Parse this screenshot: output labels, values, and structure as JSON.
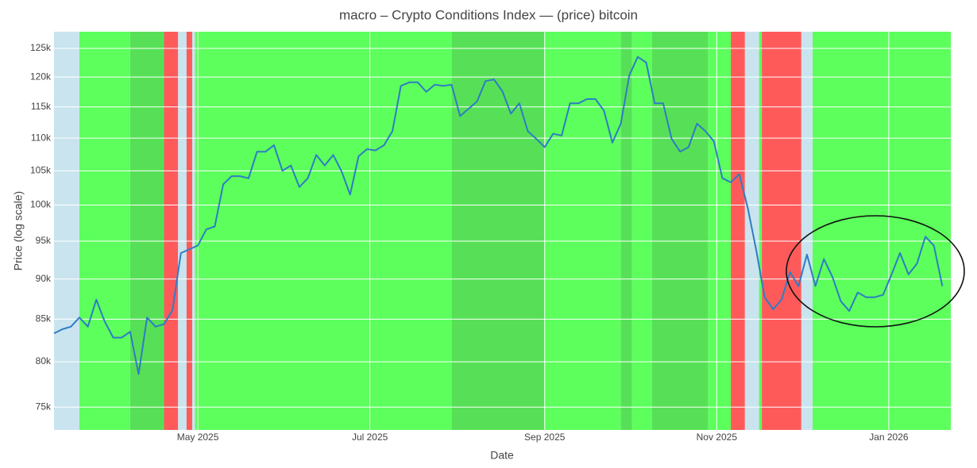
{
  "chart_data": {
    "type": "line",
    "title": "macro – Crypto Conditions Index — (price) bitcoin",
    "xlabel": "Date",
    "ylabel": "Price (log scale)",
    "log_y": true,
    "grid": true,
    "color": "#2f7cc4",
    "xlim": [
      "2025-03-11",
      "2026-01-23"
    ],
    "xticks": [
      {
        "value": "2025-05-01",
        "label": "May 2025"
      },
      {
        "value": "2025-07-01",
        "label": "Jul 2025"
      },
      {
        "value": "2025-09-01",
        "label": "Sep 2025"
      },
      {
        "value": "2025-11-01",
        "label": "Nov 2025"
      },
      {
        "value": "2026-01-01",
        "label": "Jan 2026"
      }
    ],
    "ylim": [
      72600,
      128000
    ],
    "yticks": [
      {
        "value": 75000,
        "label": "75k"
      },
      {
        "value": 80000,
        "label": "80k"
      },
      {
        "value": 85000,
        "label": "85k"
      },
      {
        "value": 90000,
        "label": "90k"
      },
      {
        "value": 95000,
        "label": "95k"
      },
      {
        "value": 100000,
        "label": "100k"
      },
      {
        "value": 105000,
        "label": "105k"
      },
      {
        "value": 110000,
        "label": "110k"
      },
      {
        "value": 115000,
        "label": "115k"
      },
      {
        "value": 120000,
        "label": "120k"
      },
      {
        "value": 125000,
        "label": "125k"
      }
    ],
    "bands": [
      {
        "start": "2025-03-11",
        "end": "2025-03-20",
        "color": "#c9e4ee"
      },
      {
        "start": "2025-03-20",
        "end": "2025-04-07",
        "color": "#5cff5c"
      },
      {
        "start": "2025-04-07",
        "end": "2025-04-19",
        "color": "#57e057"
      },
      {
        "start": "2025-04-19",
        "end": "2025-04-24",
        "color": "#ff5a5a"
      },
      {
        "start": "2025-04-24",
        "end": "2025-04-27",
        "color": "#c9e4ee"
      },
      {
        "start": "2025-04-27",
        "end": "2025-04-29",
        "color": "#ff5a5a"
      },
      {
        "start": "2025-04-29",
        "end": "2025-04-30",
        "color": "#c9e4ee"
      },
      {
        "start": "2025-04-30",
        "end": "2025-07-30",
        "color": "#5cff5c"
      },
      {
        "start": "2025-07-30",
        "end": "2025-09-01",
        "color": "#57e057"
      },
      {
        "start": "2025-09-01",
        "end": "2025-09-28",
        "color": "#5cff5c"
      },
      {
        "start": "2025-09-28",
        "end": "2025-10-02",
        "color": "#57e057"
      },
      {
        "start": "2025-10-02",
        "end": "2025-10-09",
        "color": "#5cff5c"
      },
      {
        "start": "2025-10-09",
        "end": "2025-10-29",
        "color": "#57e057"
      },
      {
        "start": "2025-10-29",
        "end": "2025-11-06",
        "color": "#5cff5c"
      },
      {
        "start": "2025-11-06",
        "end": "2025-11-11",
        "color": "#ff5a5a"
      },
      {
        "start": "2025-11-11",
        "end": "2025-11-16",
        "color": "#c9e4ee"
      },
      {
        "start": "2025-11-16",
        "end": "2025-11-17",
        "color": "#5cff5c"
      },
      {
        "start": "2025-11-17",
        "end": "2025-12-01",
        "color": "#ff5a5a"
      },
      {
        "start": "2025-12-01",
        "end": "2025-12-05",
        "color": "#c9e4ee"
      },
      {
        "start": "2025-12-05",
        "end": "2026-01-23",
        "color": "#5cff5c"
      }
    ],
    "x": [
      "2025-03-11",
      "2025-03-14",
      "2025-03-17",
      "2025-03-20",
      "2025-03-23",
      "2025-03-26",
      "2025-03-29",
      "2025-04-01",
      "2025-04-04",
      "2025-04-07",
      "2025-04-10",
      "2025-04-13",
      "2025-04-16",
      "2025-04-19",
      "2025-04-22",
      "2025-04-25",
      "2025-04-28",
      "2025-05-01",
      "2025-05-04",
      "2025-05-07",
      "2025-05-10",
      "2025-05-13",
      "2025-05-16",
      "2025-05-19",
      "2025-05-22",
      "2025-05-25",
      "2025-05-28",
      "2025-05-31",
      "2025-06-03",
      "2025-06-06",
      "2025-06-09",
      "2025-06-12",
      "2025-06-15",
      "2025-06-18",
      "2025-06-21",
      "2025-06-24",
      "2025-06-27",
      "2025-06-30",
      "2025-07-03",
      "2025-07-06",
      "2025-07-09",
      "2025-07-12",
      "2025-07-15",
      "2025-07-18",
      "2025-07-21",
      "2025-07-24",
      "2025-07-27",
      "2025-07-30",
      "2025-08-02",
      "2025-08-05",
      "2025-08-08",
      "2025-08-11",
      "2025-08-14",
      "2025-08-17",
      "2025-08-20",
      "2025-08-23",
      "2025-08-26",
      "2025-08-29",
      "2025-09-01",
      "2025-09-04",
      "2025-09-07",
      "2025-09-10",
      "2025-09-13",
      "2025-09-16",
      "2025-09-19",
      "2025-09-22",
      "2025-09-25",
      "2025-09-28",
      "2025-10-01",
      "2025-10-04",
      "2025-10-07",
      "2025-10-10",
      "2025-10-13",
      "2025-10-16",
      "2025-10-19",
      "2025-10-22",
      "2025-10-25",
      "2025-10-28",
      "2025-10-31",
      "2025-11-03",
      "2025-11-06",
      "2025-11-09",
      "2025-11-12",
      "2025-11-15",
      "2025-11-18",
      "2025-11-21",
      "2025-11-24",
      "2025-11-27",
      "2025-11-30",
      "2025-12-03",
      "2025-12-06",
      "2025-12-09",
      "2025-12-12",
      "2025-12-15",
      "2025-12-18",
      "2025-12-21",
      "2025-12-24",
      "2025-12-27",
      "2025-12-30",
      "2026-01-02",
      "2026-01-05",
      "2026-01-08",
      "2026-01-11",
      "2026-01-14",
      "2026-01-17",
      "2026-01-20"
    ],
    "values": [
      83300,
      83800,
      84100,
      85200,
      84100,
      87400,
      84700,
      82800,
      82800,
      83500,
      78600,
      85200,
      84100,
      84400,
      86100,
      93400,
      93900,
      94400,
      96600,
      97000,
      103000,
      104200,
      104200,
      103900,
      107900,
      107900,
      108900,
      105000,
      105800,
      102600,
      103900,
      107400,
      105800,
      107400,
      104900,
      101500,
      107200,
      108300,
      108100,
      108900,
      111100,
      118500,
      119100,
      119100,
      117500,
      118700,
      118500,
      118700,
      113500,
      114700,
      115900,
      119300,
      119600,
      117600,
      113900,
      115600,
      111100,
      109900,
      108600,
      110700,
      110400,
      115600,
      115600,
      116300,
      116300,
      114400,
      109300,
      112300,
      120300,
      123500,
      122500,
      115600,
      115600,
      109900,
      107900,
      108600,
      112300,
      111100,
      109500,
      103900,
      103300,
      104500,
      99600,
      93800,
      87700,
      86200,
      87400,
      90900,
      89100,
      93200,
      89100,
      92600,
      90300,
      87200,
      86000,
      88300,
      87700,
      87700,
      88000,
      90600,
      93400,
      90600,
      92000,
      95600,
      94400,
      89100
    ]
  }
}
